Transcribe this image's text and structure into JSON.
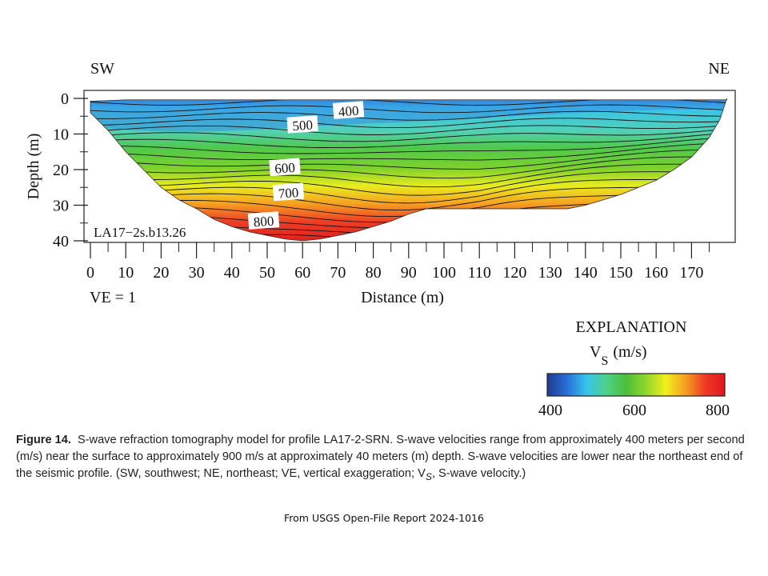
{
  "chart_data": {
    "type": "heatmap",
    "title": "",
    "left_direction": "SW",
    "right_direction": "NE",
    "xlabel": "Distance (m)",
    "ylabel": "Depth (m)",
    "xlim": [
      0,
      180
    ],
    "ylim": [
      0,
      40
    ],
    "x_ticks": [
      0,
      10,
      20,
      30,
      40,
      50,
      60,
      70,
      80,
      90,
      100,
      110,
      120,
      130,
      140,
      150,
      160,
      170
    ],
    "y_ticks": [
      0,
      10,
      20,
      30,
      40
    ],
    "vertical_exaggeration": "VE = 1",
    "model_label": "LA17−2s.b13.26",
    "contour_labels": [
      {
        "value": "400",
        "x": 73,
        "y": 3.5
      },
      {
        "value": "500",
        "x": 60,
        "y": 7.5
      },
      {
        "value": "600",
        "x": 55,
        "y": 19.5
      },
      {
        "value": "700",
        "x": 56,
        "y": 26.5
      },
      {
        "value": "800",
        "x": 49,
        "y": 34.5
      }
    ],
    "bottom_boundary": [
      [
        0,
        4
      ],
      [
        5,
        9
      ],
      [
        10,
        15
      ],
      [
        15,
        20
      ],
      [
        20,
        25
      ],
      [
        25,
        28.5
      ],
      [
        30,
        31
      ],
      [
        35,
        34
      ],
      [
        40,
        36
      ],
      [
        45,
        37.5
      ],
      [
        50,
        38.5
      ],
      [
        55,
        39.5
      ],
      [
        60,
        40
      ],
      [
        65,
        39.5
      ],
      [
        70,
        38.5
      ],
      [
        75,
        37.5
      ],
      [
        80,
        36
      ],
      [
        85,
        34.5
      ],
      [
        90,
        32.5
      ],
      [
        95,
        31
      ],
      [
        100,
        31
      ],
      [
        110,
        31
      ],
      [
        120,
        31
      ],
      [
        130,
        31
      ],
      [
        135,
        31
      ],
      [
        140,
        30
      ],
      [
        145,
        28.5
      ],
      [
        150,
        27
      ],
      [
        155,
        25
      ],
      [
        160,
        23
      ],
      [
        165,
        20
      ],
      [
        170,
        16.5
      ],
      [
        175,
        11
      ],
      [
        178,
        6
      ],
      [
        180,
        0
      ]
    ],
    "velocity_range": [
      400,
      800
    ],
    "colorbar": {
      "title": "EXPLANATION",
      "unit_label": "V",
      "unit_subscript": "S",
      "unit_suffix": "(m/s)",
      "tick_labels": [
        "400",
        "600",
        "800"
      ],
      "colors": [
        "#1f3a93",
        "#2a6fd6",
        "#35c4ec",
        "#4fd08a",
        "#4cbf3a",
        "#8fd62c",
        "#f2ef1c",
        "#f59f20",
        "#ef3a25",
        "#e0161e"
      ]
    }
  },
  "caption": {
    "figure_label": "Figure 14.",
    "text": "S-wave refraction tomography model for profile LA17-2-SRN. S-wave velocities range from approximately 400 meters per second (m/s) near the surface to approximately 900 m/s at approximately 40 meters (m) depth. S-wave velocities are lower near the northeast end of the seismic profile. (SW, southwest; NE, northeast; VE, vertical exaggeration; V",
    "text_subscript": "S",
    "text_end": ", S-wave velocity.)"
  },
  "source_note": "From USGS Open-File Report 2024-1016"
}
